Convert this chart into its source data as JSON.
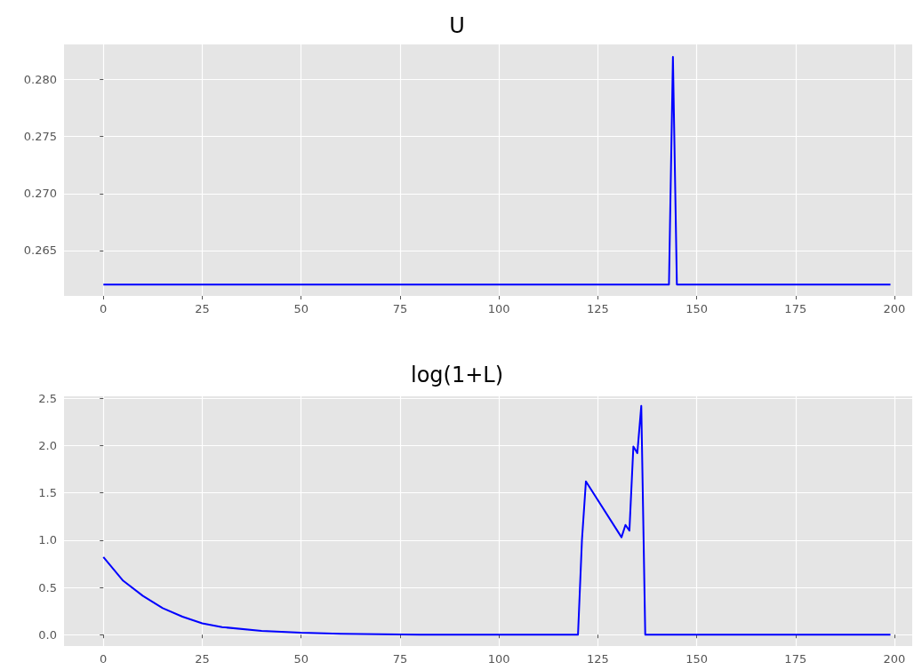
{
  "chart_data": [
    {
      "type": "line",
      "title": "U",
      "grid": true,
      "xlim": [
        -9.95,
        204.5
      ],
      "ylim": [
        0.261,
        0.2831
      ],
      "xticks": [
        0,
        25,
        50,
        75,
        100,
        125,
        150,
        175,
        200
      ],
      "yticks": [
        0.265,
        {
          "value": 0.27,
          "label": "0.270"
        },
        0.275,
        {
          "value": 0.28,
          "label": "0.280"
        }
      ],
      "series": [
        {
          "color": "#0000ff",
          "x": [
            0,
            143,
            144,
            145,
            199
          ],
          "values": [
            0.262,
            0.262,
            0.282,
            0.262,
            0.262
          ]
        }
      ]
    },
    {
      "type": "line",
      "title": "log(1+L)",
      "grid": true,
      "xlim": [
        -9.95,
        204.5
      ],
      "ylim": [
        -0.12,
        2.52
      ],
      "xticks": [
        0,
        25,
        50,
        75,
        100,
        125,
        150,
        175,
        200
      ],
      "yticks": [
        {
          "value": 0,
          "label": "0.0"
        },
        0.5,
        {
          "value": 1,
          "label": "1.0"
        },
        1.5,
        {
          "value": 2,
          "label": "2.0"
        },
        2.5
      ],
      "series": [
        {
          "color": "#0000ff",
          "x": [
            0,
            5,
            10,
            15,
            20,
            25,
            30,
            40,
            50,
            60,
            80,
            120,
            121,
            122,
            131,
            132,
            133,
            134,
            135,
            136,
            137,
            199
          ],
          "values": [
            0.82,
            0.57,
            0.41,
            0.28,
            0.19,
            0.12,
            0.08,
            0.04,
            0.02,
            0.01,
            0,
            0,
            1.0,
            1.62,
            1.03,
            1.16,
            1.1,
            1.99,
            1.92,
            2.42,
            0,
            0
          ]
        }
      ]
    }
  ]
}
